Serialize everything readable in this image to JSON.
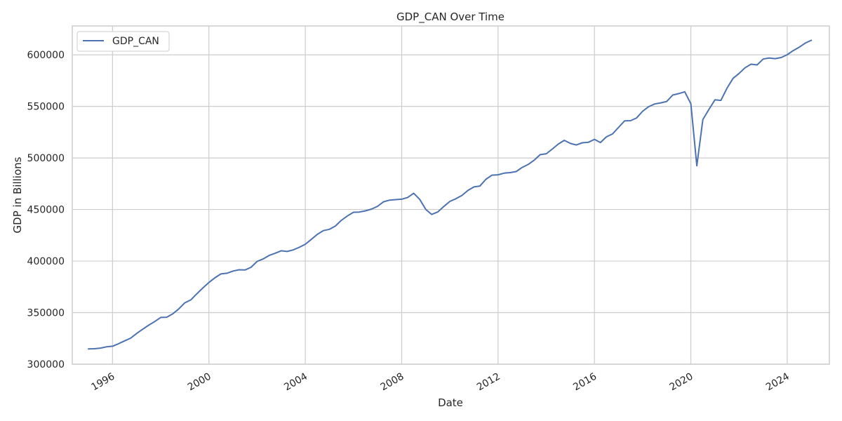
{
  "chart_data": {
    "type": "line",
    "title": "GDP_CAN Over Time",
    "xlabel": "Date",
    "ylabel": "GDP in Billions",
    "ylim": [
      300000,
      628000
    ],
    "xlim": [
      "1994-05-01",
      "2025-10-01"
    ],
    "x_ticks": [
      {
        "date": "1996-01-01",
        "label": "1996"
      },
      {
        "date": "2000-01-01",
        "label": "2000"
      },
      {
        "date": "2004-01-01",
        "label": "2004"
      },
      {
        "date": "2008-01-01",
        "label": "2008"
      },
      {
        "date": "2012-01-01",
        "label": "2012"
      },
      {
        "date": "2016-01-01",
        "label": "2016"
      },
      {
        "date": "2020-01-01",
        "label": "2020"
      },
      {
        "date": "2024-01-01",
        "label": "2024"
      }
    ],
    "y_ticks": [
      {
        "value": 300000,
        "label": "300000"
      },
      {
        "value": 350000,
        "label": "350000"
      },
      {
        "value": 400000,
        "label": "400000"
      },
      {
        "value": 450000,
        "label": "450000"
      },
      {
        "value": 500000,
        "label": "500000"
      },
      {
        "value": 550000,
        "label": "550000"
      },
      {
        "value": 600000,
        "label": "600000"
      }
    ],
    "grid": true,
    "legend": {
      "position": "top-left"
    },
    "series": [
      {
        "name": "GDP_CAN",
        "color": "#4c72b0",
        "x": [
          "1995-01-01",
          "1995-04-01",
          "1995-07-01",
          "1995-10-01",
          "1996-01-01",
          "1996-04-01",
          "1996-07-01",
          "1996-10-01",
          "1997-01-01",
          "1997-04-01",
          "1997-07-01",
          "1997-10-01",
          "1998-01-01",
          "1998-04-01",
          "1998-07-01",
          "1998-10-01",
          "1999-01-01",
          "1999-04-01",
          "1999-07-01",
          "1999-10-01",
          "2000-01-01",
          "2000-04-01",
          "2000-07-01",
          "2000-10-01",
          "2001-01-01",
          "2001-04-01",
          "2001-07-01",
          "2001-10-01",
          "2002-01-01",
          "2002-04-01",
          "2002-07-01",
          "2002-10-01",
          "2003-01-01",
          "2003-04-01",
          "2003-07-01",
          "2003-10-01",
          "2004-01-01",
          "2004-04-01",
          "2004-07-01",
          "2004-10-01",
          "2005-01-01",
          "2005-04-01",
          "2005-07-01",
          "2005-10-01",
          "2006-01-01",
          "2006-04-01",
          "2006-07-01",
          "2006-10-01",
          "2007-01-01",
          "2007-04-01",
          "2007-07-01",
          "2007-10-01",
          "2008-01-01",
          "2008-04-01",
          "2008-07-01",
          "2008-10-01",
          "2009-01-01",
          "2009-04-01",
          "2009-07-01",
          "2009-10-01",
          "2010-01-01",
          "2010-04-01",
          "2010-07-01",
          "2010-10-01",
          "2011-01-01",
          "2011-04-01",
          "2011-07-01",
          "2011-10-01",
          "2012-01-01",
          "2012-04-01",
          "2012-07-01",
          "2012-10-01",
          "2013-01-01",
          "2013-04-01",
          "2013-07-01",
          "2013-10-01",
          "2014-01-01",
          "2014-04-01",
          "2014-07-01",
          "2014-10-01",
          "2015-01-01",
          "2015-04-01",
          "2015-07-01",
          "2015-10-01",
          "2016-01-01",
          "2016-04-01",
          "2016-07-01",
          "2016-10-01",
          "2017-01-01",
          "2017-04-01",
          "2017-07-01",
          "2017-10-01",
          "2018-01-01",
          "2018-04-01",
          "2018-07-01",
          "2018-10-01",
          "2019-01-01",
          "2019-04-01",
          "2019-07-01",
          "2019-10-01",
          "2020-01-01",
          "2020-04-01",
          "2020-07-01",
          "2020-10-01",
          "2021-01-01",
          "2021-04-01",
          "2021-07-01",
          "2021-10-01",
          "2022-01-01",
          "2022-04-01",
          "2022-07-01",
          "2022-10-01",
          "2023-01-01",
          "2023-04-01",
          "2023-07-01",
          "2023-10-01",
          "2024-01-01",
          "2024-04-01",
          "2024-07-01",
          "2024-10-01",
          "2025-01-01"
        ],
        "values": [
          314800,
          315000,
          315600,
          316800,
          317400,
          319800,
          322600,
          325200,
          329800,
          333800,
          337800,
          341300,
          345300,
          345500,
          348700,
          353600,
          359500,
          362300,
          368200,
          373900,
          379200,
          383800,
          387500,
          388200,
          390300,
          391500,
          391300,
          394000,
          399700,
          402000,
          405400,
          407600,
          410000,
          409300,
          410800,
          413300,
          416300,
          421000,
          425900,
          429500,
          430800,
          434000,
          439500,
          443800,
          447300,
          447500,
          448700,
          450400,
          453100,
          457500,
          459100,
          459600,
          460000,
          461700,
          465800,
          459800,
          450000,
          445200,
          447600,
          452900,
          457900,
          460400,
          463600,
          468500,
          471900,
          472800,
          479300,
          483300,
          483700,
          485200,
          485800,
          486800,
          490800,
          493700,
          497800,
          503200,
          504100,
          508600,
          513400,
          517100,
          514100,
          512600,
          514700,
          515200,
          518000,
          515000,
          520500,
          523300,
          529700,
          535900,
          536100,
          538800,
          545300,
          549700,
          552300,
          553400,
          554800,
          561000,
          562400,
          564200,
          552600,
          492400,
          537200,
          547000,
          556400,
          555800,
          567500,
          577100,
          581900,
          587400,
          590900,
          590200,
          595900,
          597000,
          596300,
          597400,
          600100,
          604100,
          607400,
          611400,
          614100
        ]
      }
    ]
  }
}
